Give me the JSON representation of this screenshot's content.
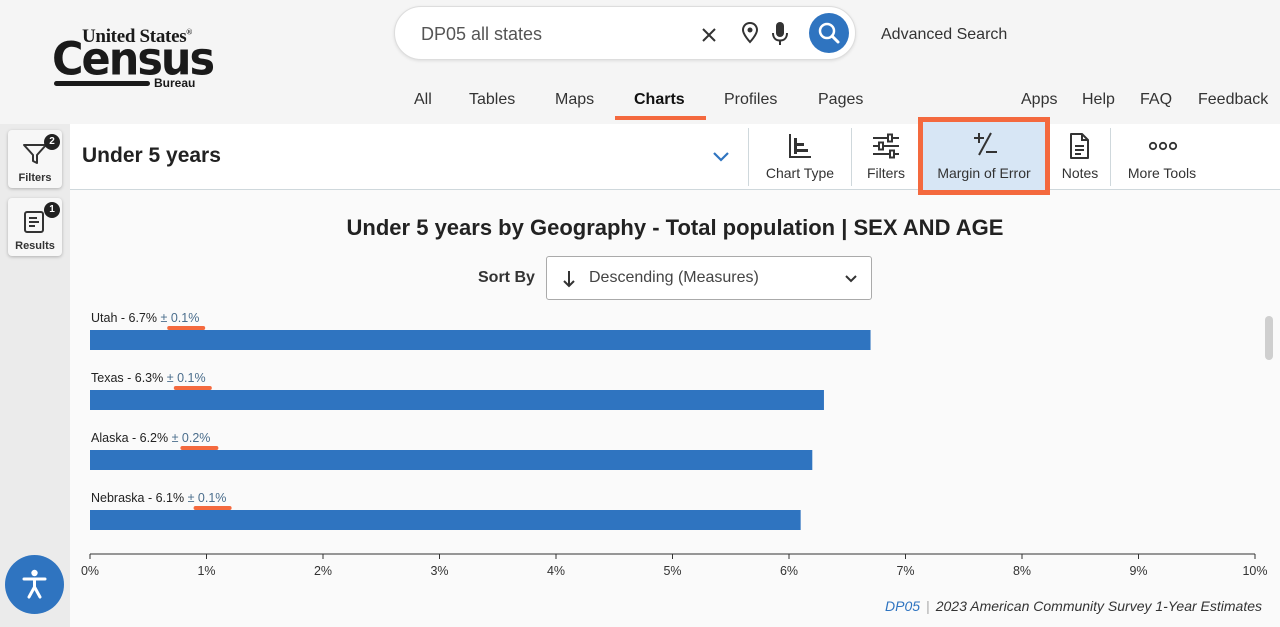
{
  "logo": {
    "line1": "United States",
    "reg": "®",
    "line2": "Census",
    "line3": "Bureau"
  },
  "search": {
    "value": "DP05 all states",
    "placeholder": "Search",
    "advanced": "Advanced Search"
  },
  "nav": {
    "tabs": [
      {
        "label": "All"
      },
      {
        "label": "Tables"
      },
      {
        "label": "Maps"
      },
      {
        "label": "Charts",
        "active": true
      },
      {
        "label": "Profiles"
      },
      {
        "label": "Pages"
      }
    ],
    "links": [
      {
        "label": "Apps"
      },
      {
        "label": "Help"
      },
      {
        "label": "FAQ"
      },
      {
        "label": "Feedback"
      }
    ]
  },
  "side": {
    "filters": {
      "label": "Filters",
      "badge": "2"
    },
    "results": {
      "label": "Results",
      "badge": "1"
    }
  },
  "toolbar": {
    "variable": "Under 5 years",
    "tools": [
      {
        "label": "Chart Type",
        "icon": "bar-chart-icon"
      },
      {
        "label": "Filters",
        "icon": "sliders-icon"
      },
      {
        "label": "Margin of Error",
        "icon": "plus-minus-icon",
        "highlighted": true
      },
      {
        "label": "Notes",
        "icon": "document-icon"
      },
      {
        "label": "More Tools",
        "icon": "more-icon"
      }
    ]
  },
  "chart_data": {
    "type": "bar",
    "orientation": "horizontal",
    "title": "Under 5 years by Geography - Total population | SEX AND AGE",
    "sort_label": "Sort By",
    "sort_value": "Descending (Measures)",
    "categories": [
      "Utah",
      "Texas",
      "Alaska",
      "Nebraska"
    ],
    "values": [
      6.7,
      6.3,
      6.2,
      6.1
    ],
    "moe": [
      "± 0.1%",
      "± 0.1%",
      "± 0.2%",
      "± 0.1%"
    ],
    "value_labels": [
      "6.7%",
      "6.3%",
      "6.2%",
      "6.1%"
    ],
    "xlim": [
      0,
      10
    ],
    "ticks": [
      "0%",
      "1%",
      "2%",
      "3%",
      "4%",
      "5%",
      "6%",
      "7%",
      "8%",
      "9%",
      "10%"
    ],
    "bar_color": "#2f74c0",
    "moe_underline_color": "#f4693e"
  },
  "footer": {
    "dataset": "DP05",
    "source": "2023 American Community Survey 1-Year Estimates"
  },
  "colors": {
    "accent": "#2f74c0",
    "highlight": "#f4693e"
  }
}
